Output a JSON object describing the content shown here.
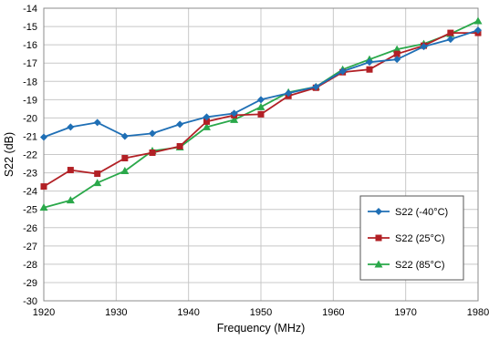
{
  "chart_data": {
    "type": "line",
    "xlabel": "Frequency (MHz)",
    "ylabel": "S22 (dB)",
    "xlim": [
      1920,
      1980
    ],
    "ylim": [
      -30,
      -14
    ],
    "x_ticks": [
      "1920",
      "1930",
      "1940",
      "1950",
      "1960",
      "1970",
      "1980"
    ],
    "y_ticks": [
      "-14",
      "-15",
      "-16",
      "-17",
      "-18",
      "-19",
      "-20",
      "-21",
      "-22",
      "-23",
      "-24",
      "-25",
      "-26",
      "-27",
      "-28",
      "-29",
      "-30"
    ],
    "grid": true,
    "legend_position": "bottom-right",
    "series": [
      {
        "name": "S22 (-40°C)",
        "color": "#1f6fb5",
        "marker": "diamond",
        "points": [
          [
            1920,
            -21.05
          ],
          [
            1923.7,
            -20.5
          ],
          [
            1927.4,
            -20.25
          ],
          [
            1931.2,
            -21.0
          ],
          [
            1935,
            -20.85
          ],
          [
            1938.8,
            -20.35
          ],
          [
            1942.5,
            -19.95
          ],
          [
            1946.3,
            -19.75
          ],
          [
            1950,
            -19.0
          ],
          [
            1953.8,
            -18.65
          ],
          [
            1957.6,
            -18.3
          ],
          [
            1961.3,
            -17.45
          ],
          [
            1965,
            -16.95
          ],
          [
            1968.8,
            -16.8
          ],
          [
            1972.5,
            -16.1
          ],
          [
            1976.2,
            -15.7
          ],
          [
            1980,
            -15.2
          ]
        ]
      },
      {
        "name": "S22 (25°C)",
        "color": "#b22025",
        "marker": "square",
        "points": [
          [
            1920,
            -23.75
          ],
          [
            1923.7,
            -22.85
          ],
          [
            1927.4,
            -23.05
          ],
          [
            1931.2,
            -22.2
          ],
          [
            1935,
            -21.9
          ],
          [
            1938.8,
            -21.55
          ],
          [
            1942.5,
            -20.2
          ],
          [
            1946.3,
            -19.85
          ],
          [
            1950,
            -19.8
          ],
          [
            1953.8,
            -18.8
          ],
          [
            1957.6,
            -18.35
          ],
          [
            1961.3,
            -17.5
          ],
          [
            1965,
            -17.35
          ],
          [
            1968.8,
            -16.5
          ],
          [
            1972.5,
            -16.05
          ],
          [
            1976.2,
            -15.35
          ],
          [
            1980,
            -15.35
          ]
        ]
      },
      {
        "name": "S22 (85°C)",
        "color": "#2aa84a",
        "marker": "triangle",
        "points": [
          [
            1920,
            -24.9
          ],
          [
            1923.7,
            -24.5
          ],
          [
            1927.4,
            -23.55
          ],
          [
            1931.2,
            -22.9
          ],
          [
            1935,
            -21.8
          ],
          [
            1938.8,
            -21.6
          ],
          [
            1942.5,
            -20.5
          ],
          [
            1946.3,
            -20.1
          ],
          [
            1950,
            -19.4
          ],
          [
            1953.8,
            -18.6
          ],
          [
            1957.6,
            -18.3
          ],
          [
            1961.3,
            -17.35
          ],
          [
            1965,
            -16.8
          ],
          [
            1968.8,
            -16.25
          ],
          [
            1972.5,
            -15.95
          ],
          [
            1976.2,
            -15.4
          ],
          [
            1980,
            -14.7
          ]
        ]
      }
    ]
  }
}
